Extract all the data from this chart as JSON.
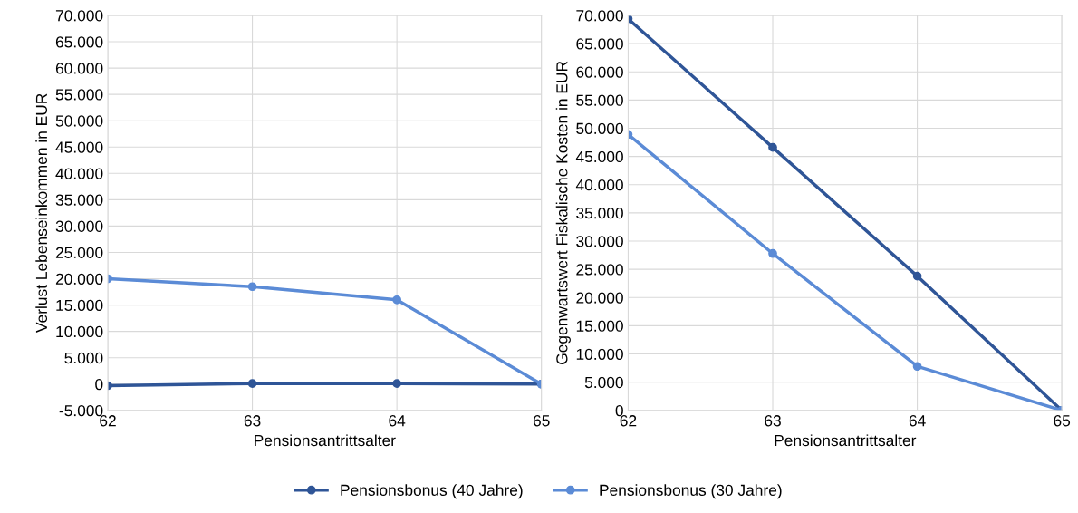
{
  "chart_data": [
    {
      "type": "line",
      "xlabel": "Pensionsantrittsalter",
      "ylabel": "Verlust Lebenseinkommen in EUR",
      "x": [
        62,
        63,
        64,
        65
      ],
      "xlim": [
        62,
        65
      ],
      "xticks": [
        62,
        63,
        64,
        65
      ],
      "ylim": [
        -5000,
        70000
      ],
      "yticks": [
        {
          "value": -5000,
          "label": "-5.000"
        },
        {
          "value": 0,
          "label": "0"
        },
        {
          "value": 5000,
          "label": "5.000"
        },
        {
          "value": 10000,
          "label": "10.000"
        },
        {
          "value": 15000,
          "label": "15.000"
        },
        {
          "value": 20000,
          "label": "20.000"
        },
        {
          "value": 25000,
          "label": "25.000"
        },
        {
          "value": 30000,
          "label": "30.000"
        },
        {
          "value": 35000,
          "label": "35.000"
        },
        {
          "value": 40000,
          "label": "40.000"
        },
        {
          "value": 45000,
          "label": "45.000"
        },
        {
          "value": 50000,
          "label": "50.000"
        },
        {
          "value": 55000,
          "label": "55.000"
        },
        {
          "value": 60000,
          "label": "60.000"
        },
        {
          "value": 65000,
          "label": "65.000"
        },
        {
          "value": 70000,
          "label": "70.000"
        }
      ],
      "grid": true,
      "marker": "circle",
      "legend": "bottom",
      "series": [
        {
          "name": "Pensionsbonus (40 Jahre)",
          "color": "#2f5597",
          "values": [
            -300,
            100,
            100,
            0
          ]
        },
        {
          "name": "Pensionsbonus (30 Jahre)",
          "color": "#5b8bd6",
          "values": [
            20000,
            18500,
            16000,
            0
          ]
        }
      ]
    },
    {
      "type": "line",
      "xlabel": "Pensionsantrittsalter",
      "ylabel": "Gegenwartswert Fiskalische Kosten in EUR",
      "x": [
        62,
        63,
        64,
        65
      ],
      "xlim": [
        62,
        65
      ],
      "xticks": [
        62,
        63,
        64,
        65
      ],
      "ylim": [
        0,
        70000
      ],
      "yticks": [
        {
          "value": 0,
          "label": "0"
        },
        {
          "value": 5000,
          "label": "5.000"
        },
        {
          "value": 10000,
          "label": "10.000"
        },
        {
          "value": 15000,
          "label": "15.000"
        },
        {
          "value": 20000,
          "label": "20.000"
        },
        {
          "value": 25000,
          "label": "25.000"
        },
        {
          "value": 30000,
          "label": "30.000"
        },
        {
          "value": 35000,
          "label": "35.000"
        },
        {
          "value": 40000,
          "label": "40.000"
        },
        {
          "value": 45000,
          "label": "45.000"
        },
        {
          "value": 50000,
          "label": "50.000"
        },
        {
          "value": 55000,
          "label": "55.000"
        },
        {
          "value": 60000,
          "label": "60.000"
        },
        {
          "value": 65000,
          "label": "65.000"
        },
        {
          "value": 70000,
          "label": "70.000"
        }
      ],
      "grid": true,
      "marker": "circle",
      "legend": "bottom",
      "series": [
        {
          "name": "Pensionsbonus (40 Jahre)",
          "color": "#2f5597",
          "values": [
            69400,
            46600,
            23800,
            0
          ]
        },
        {
          "name": "Pensionsbonus (30 Jahre)",
          "color": "#5b8bd6",
          "values": [
            48900,
            27800,
            7800,
            0
          ]
        }
      ]
    }
  ]
}
